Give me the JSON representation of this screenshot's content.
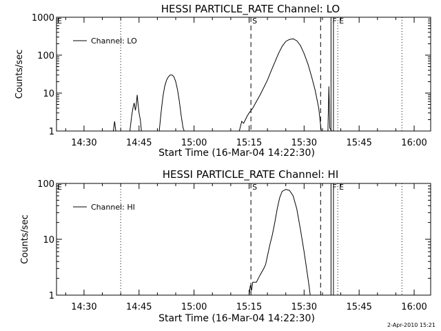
{
  "footer": {
    "timestamp": "2-Apr-2010 15:21"
  },
  "chart_data": [
    {
      "type": "line",
      "title": "HESSI PARTICLE_RATE Channel: LO",
      "xlabel": "Start Time (16-Mar-04 14:22:30)",
      "ylabel": "Counts/sec",
      "yscale": "log",
      "xlim": [
        "14:22:30",
        "16:04:30"
      ],
      "ylim": [
        1,
        1000
      ],
      "grid": false,
      "legend_position": "top-left",
      "x_ticks": [
        "14:30",
        "14:45",
        "15:00",
        "15:15",
        "15:30",
        "15:45",
        "16:00"
      ],
      "y_ticks": [
        "1",
        "10",
        "100",
        "1000"
      ],
      "series": [
        {
          "name": "Channel: LO",
          "points": [
            [
              "14:38:00",
              1
            ],
            [
              "14:38:20",
              1.8
            ],
            [
              "14:38:40",
              1
            ],
            [
              "14:42:30",
              1
            ],
            [
              "14:43:00",
              2.5
            ],
            [
              "14:43:20",
              4
            ],
            [
              "14:43:40",
              5.5
            ],
            [
              "14:44:00",
              3.5
            ],
            [
              "14:44:15",
              5
            ],
            [
              "14:44:30",
              9
            ],
            [
              "14:44:45",
              5
            ],
            [
              "14:45:00",
              3
            ],
            [
              "14:45:20",
              2
            ],
            [
              "14:45:40",
              1
            ],
            [
              "14:50:30",
              1
            ],
            [
              "14:51:00",
              3
            ],
            [
              "14:51:30",
              8
            ],
            [
              "14:52:00",
              15
            ],
            [
              "14:52:30",
              22
            ],
            [
              "14:53:00",
              27
            ],
            [
              "14:53:30",
              30
            ],
            [
              "14:54:00",
              30
            ],
            [
              "14:54:30",
              27
            ],
            [
              "14:55:00",
              20
            ],
            [
              "14:55:30",
              12
            ],
            [
              "14:56:00",
              6
            ],
            [
              "14:56:30",
              2.5
            ],
            [
              "14:57:00",
              1.2
            ],
            [
              "14:57:20",
              1
            ],
            [
              "15:12:20",
              1
            ],
            [
              "15:13:00",
              1.8
            ],
            [
              "15:13:30",
              1.6
            ],
            [
              "15:14:00",
              2
            ],
            [
              "15:14:30",
              2.5
            ],
            [
              "15:15:00",
              3
            ],
            [
              "15:16:00",
              4
            ],
            [
              "15:17:00",
              6
            ],
            [
              "15:18:00",
              9
            ],
            [
              "15:19:00",
              14
            ],
            [
              "15:20:00",
              22
            ],
            [
              "15:21:00",
              38
            ],
            [
              "15:22:00",
              65
            ],
            [
              "15:23:00",
              110
            ],
            [
              "15:24:00",
              170
            ],
            [
              "15:25:00",
              230
            ],
            [
              "15:26:00",
              260
            ],
            [
              "15:27:00",
              270
            ],
            [
              "15:28:00",
              240
            ],
            [
              "15:29:00",
              180
            ],
            [
              "15:30:00",
              110
            ],
            [
              "15:31:00",
              60
            ],
            [
              "15:32:00",
              28
            ],
            [
              "15:33:00",
              12
            ],
            [
              "15:34:00",
              4
            ],
            [
              "15:34:40",
              1
            ],
            [
              "15:36:30",
              1
            ],
            [
              "15:36:45",
              15
            ],
            [
              "15:37:00",
              1.2
            ],
            [
              "15:37:30",
              1
            ]
          ]
        }
      ],
      "annotations": [
        {
          "label": "S",
          "time": "15:15:30",
          "style": "dashed"
        },
        {
          "label": "",
          "time": "15:34:30",
          "style": "dashed"
        },
        {
          "label": "F",
          "time": "15:37:20",
          "style": "solid"
        },
        {
          "label": "",
          "time": "15:38:00",
          "style": "solid"
        },
        {
          "label": "E",
          "time": "15:39:10",
          "style": "dotted"
        },
        {
          "label": "",
          "time": "14:40:00",
          "style": "dotted"
        },
        {
          "label": "",
          "time": "15:56:40",
          "style": "dotted"
        }
      ],
      "corner_label": "E"
    },
    {
      "type": "line",
      "title": "HESSI PARTICLE_RATE Channel: HI",
      "xlabel": "Start Time (16-Mar-04 14:22:30)",
      "ylabel": "Counts/sec",
      "yscale": "log",
      "xlim": [
        "14:22:30",
        "16:04:30"
      ],
      "ylim": [
        1,
        100
      ],
      "grid": false,
      "legend_position": "top-left",
      "x_ticks": [
        "14:30",
        "14:45",
        "15:00",
        "15:15",
        "15:30",
        "15:45",
        "16:00"
      ],
      "y_ticks": [
        "1",
        "10",
        "100"
      ],
      "series": [
        {
          "name": "Channel: HI",
          "points": [
            [
              "15:15:00",
              1
            ],
            [
              "15:15:20",
              1.5
            ],
            [
              "15:15:40",
              1.2
            ],
            [
              "15:16:00",
              1.7
            ],
            [
              "15:17:00",
              1.7
            ],
            [
              "15:18:00",
              2.3
            ],
            [
              "15:19:00",
              3
            ],
            [
              "15:19:30",
              3.5
            ],
            [
              "15:20:00",
              5
            ],
            [
              "15:20:40",
              8
            ],
            [
              "15:21:20",
              12
            ],
            [
              "15:22:00",
              20
            ],
            [
              "15:22:40",
              35
            ],
            [
              "15:23:20",
              55
            ],
            [
              "15:24:00",
              72
            ],
            [
              "15:25:00",
              78
            ],
            [
              "15:26:00",
              75
            ],
            [
              "15:27:00",
              60
            ],
            [
              "15:28:00",
              35
            ],
            [
              "15:29:00",
              15
            ],
            [
              "15:30:00",
              6
            ],
            [
              "15:30:40",
              3
            ],
            [
              "15:31:20",
              1.5
            ],
            [
              "15:31:40",
              1
            ]
          ]
        }
      ],
      "annotations": [
        {
          "label": "S",
          "time": "15:15:30",
          "style": "dashed"
        },
        {
          "label": "",
          "time": "15:34:30",
          "style": "dashed"
        },
        {
          "label": "F",
          "time": "15:37:20",
          "style": "solid"
        },
        {
          "label": "",
          "time": "15:38:00",
          "style": "solid"
        },
        {
          "label": "E",
          "time": "15:39:10",
          "style": "dotted"
        },
        {
          "label": "",
          "time": "14:40:00",
          "style": "dotted"
        },
        {
          "label": "",
          "time": "15:56:40",
          "style": "dotted"
        }
      ],
      "corner_label": "E"
    }
  ]
}
